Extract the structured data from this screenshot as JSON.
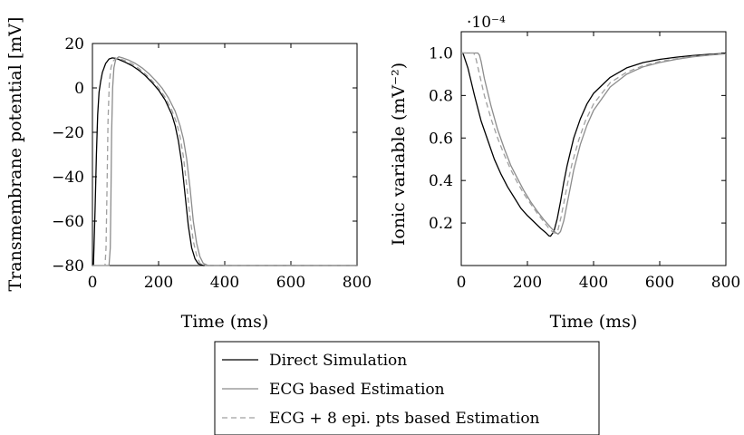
{
  "chart_data": [
    {
      "type": "line",
      "ylabel": "Transmembrane potential [mV]",
      "xlabel": "Time (ms)",
      "xlim": [
        0,
        800
      ],
      "ylim": [
        -80,
        20
      ],
      "xticks": [
        0,
        200,
        400,
        600,
        800
      ],
      "yticks": [
        -80,
        -60,
        -40,
        -20,
        0,
        20
      ],
      "xtick_labels": [
        "0",
        "200",
        "400",
        "600",
        "800"
      ],
      "ytick_labels": [
        "−80",
        "−60",
        "−40",
        "−20",
        "0",
        "20"
      ],
      "grid": false,
      "series": [
        {
          "name": "Direct Simulation",
          "color": "#000000",
          "style": "solid",
          "points": [
            [
              0,
              -80
            ],
            [
              3,
              -80
            ],
            [
              8,
              -55
            ],
            [
              12,
              -30
            ],
            [
              16,
              -12
            ],
            [
              20,
              -2
            ],
            [
              25,
              3
            ],
            [
              30,
              7
            ],
            [
              40,
              11
            ],
            [
              50,
              13
            ],
            [
              60,
              13.5
            ],
            [
              70,
              13.3
            ],
            [
              80,
              12.8
            ],
            [
              100,
              11.5
            ],
            [
              120,
              10
            ],
            [
              140,
              8
            ],
            [
              160,
              5.5
            ],
            [
              180,
              2.5
            ],
            [
              200,
              -1
            ],
            [
              220,
              -5.5
            ],
            [
              240,
              -12
            ],
            [
              250,
              -17
            ],
            [
              260,
              -24
            ],
            [
              270,
              -34
            ],
            [
              280,
              -48
            ],
            [
              290,
              -62
            ],
            [
              300,
              -72
            ],
            [
              310,
              -77
            ],
            [
              320,
              -79.2
            ],
            [
              335,
              -80
            ],
            [
              800,
              -80
            ]
          ]
        },
        {
          "name": "ECG based Estimation",
          "color": "#8c8c8c",
          "style": "solid",
          "points": [
            [
              0,
              -80
            ],
            [
              50,
              -80
            ],
            [
              54,
              -72
            ],
            [
              56,
              -50
            ],
            [
              58,
              -20
            ],
            [
              61,
              0
            ],
            [
              65,
              9
            ],
            [
              70,
              12.5
            ],
            [
              75,
              13.5
            ],
            [
              80,
              14
            ],
            [
              90,
              13.6
            ],
            [
              110,
              12.5
            ],
            [
              130,
              11
            ],
            [
              150,
              9
            ],
            [
              170,
              6.5
            ],
            [
              190,
              3.5
            ],
            [
              210,
              0
            ],
            [
              230,
              -4.5
            ],
            [
              250,
              -10.5
            ],
            [
              265,
              -17
            ],
            [
              275,
              -23
            ],
            [
              285,
              -32
            ],
            [
              295,
              -45
            ],
            [
              305,
              -60
            ],
            [
              315,
              -70
            ],
            [
              325,
              -76
            ],
            [
              335,
              -79
            ],
            [
              350,
              -80
            ],
            [
              800,
              -80
            ]
          ]
        },
        {
          "name": "ECG + 8 epi. pts based Estimation",
          "color": "#a0a0a0",
          "style": "dashed",
          "points": [
            [
              0,
              -80
            ],
            [
              38,
              -80
            ],
            [
              41,
              -72
            ],
            [
              44,
              -45
            ],
            [
              47,
              -15
            ],
            [
              51,
              2
            ],
            [
              56,
              9
            ],
            [
              62,
              12
            ],
            [
              70,
              13.2
            ],
            [
              80,
              13.3
            ],
            [
              100,
              12.2
            ],
            [
              120,
              10.8
            ],
            [
              140,
              8.8
            ],
            [
              160,
              6.3
            ],
            [
              180,
              3.3
            ],
            [
              200,
              0
            ],
            [
              220,
              -4.3
            ],
            [
              240,
              -10
            ],
            [
              255,
              -16
            ],
            [
              265,
              -22
            ],
            [
              275,
              -31
            ],
            [
              285,
              -44
            ],
            [
              295,
              -58
            ],
            [
              305,
              -69
            ],
            [
              315,
              -75.5
            ],
            [
              325,
              -79
            ],
            [
              340,
              -80
            ],
            [
              800,
              -80
            ]
          ]
        }
      ]
    },
    {
      "type": "line",
      "ylabel": "Ionic variable (mV⁻²)",
      "xlabel": "Time (ms)",
      "xlim": [
        0,
        800
      ],
      "ylim": [
        0,
        1.1
      ],
      "xticks": [
        0,
        200,
        400,
        600,
        800
      ],
      "yticks": [
        0.2,
        0.4,
        0.6,
        0.8,
        1.0
      ],
      "xtick_labels": [
        "0",
        "200",
        "400",
        "600",
        "800"
      ],
      "ytick_labels": [
        "0.2",
        "0.4",
        "0.6",
        "0.8",
        "1.0"
      ],
      "scale_label": "·10⁻⁴",
      "grid": false,
      "series": [
        {
          "name": "Direct Simulation",
          "color": "#000000",
          "style": "solid",
          "points": [
            [
              0,
              1.0
            ],
            [
              5,
              1.0
            ],
            [
              20,
              0.93
            ],
            [
              40,
              0.8
            ],
            [
              60,
              0.68
            ],
            [
              80,
              0.59
            ],
            [
              100,
              0.5
            ],
            [
              120,
              0.43
            ],
            [
              140,
              0.37
            ],
            [
              160,
              0.32
            ],
            [
              180,
              0.27
            ],
            [
              200,
              0.235
            ],
            [
              220,
              0.205
            ],
            [
              240,
              0.175
            ],
            [
              255,
              0.155
            ],
            [
              265,
              0.14
            ],
            [
              270,
              0.138
            ],
            [
              280,
              0.16
            ],
            [
              290,
              0.22
            ],
            [
              300,
              0.3
            ],
            [
              310,
              0.39
            ],
            [
              320,
              0.47
            ],
            [
              340,
              0.6
            ],
            [
              360,
              0.69
            ],
            [
              380,
              0.76
            ],
            [
              400,
              0.81
            ],
            [
              450,
              0.885
            ],
            [
              500,
              0.93
            ],
            [
              550,
              0.955
            ],
            [
              600,
              0.97
            ],
            [
              650,
              0.98
            ],
            [
              700,
              0.988
            ],
            [
              750,
              0.994
            ],
            [
              800,
              0.998
            ]
          ]
        },
        {
          "name": "ECG based Estimation",
          "color": "#8c8c8c",
          "style": "solid",
          "points": [
            [
              0,
              1.0
            ],
            [
              50,
              1.0
            ],
            [
              55,
              0.99
            ],
            [
              60,
              0.96
            ],
            [
              70,
              0.88
            ],
            [
              90,
              0.75
            ],
            [
              110,
              0.64
            ],
            [
              130,
              0.55
            ],
            [
              150,
              0.47
            ],
            [
              170,
              0.41
            ],
            [
              190,
              0.35
            ],
            [
              210,
              0.3
            ],
            [
              230,
              0.255
            ],
            [
              250,
              0.215
            ],
            [
              270,
              0.18
            ],
            [
              285,
              0.155
            ],
            [
              293,
              0.148
            ],
            [
              300,
              0.16
            ],
            [
              310,
              0.21
            ],
            [
              320,
              0.29
            ],
            [
              330,
              0.37
            ],
            [
              340,
              0.45
            ],
            [
              360,
              0.57
            ],
            [
              380,
              0.66
            ],
            [
              400,
              0.73
            ],
            [
              450,
              0.84
            ],
            [
              500,
              0.9
            ],
            [
              550,
              0.935
            ],
            [
              600,
              0.955
            ],
            [
              650,
              0.97
            ],
            [
              700,
              0.982
            ],
            [
              750,
              0.99
            ],
            [
              800,
              0.996
            ]
          ]
        },
        {
          "name": "ECG + 8 epi. pts based Estimation",
          "color": "#a0a0a0",
          "style": "dashed",
          "points": [
            [
              0,
              1.0
            ],
            [
              38,
              1.0
            ],
            [
              45,
              0.97
            ],
            [
              55,
              0.9
            ],
            [
              70,
              0.8
            ],
            [
              90,
              0.69
            ],
            [
              110,
              0.6
            ],
            [
              130,
              0.52
            ],
            [
              150,
              0.45
            ],
            [
              170,
              0.39
            ],
            [
              190,
              0.335
            ],
            [
              210,
              0.29
            ],
            [
              230,
              0.245
            ],
            [
              250,
              0.205
            ],
            [
              265,
              0.175
            ],
            [
              278,
              0.155
            ],
            [
              285,
              0.152
            ],
            [
              292,
              0.165
            ],
            [
              302,
              0.23
            ],
            [
              312,
              0.31
            ],
            [
              322,
              0.39
            ],
            [
              335,
              0.48
            ],
            [
              355,
              0.59
            ],
            [
              375,
              0.68
            ],
            [
              400,
              0.76
            ],
            [
              450,
              0.86
            ],
            [
              500,
              0.91
            ],
            [
              550,
              0.94
            ],
            [
              600,
              0.96
            ],
            [
              650,
              0.973
            ],
            [
              700,
              0.984
            ],
            [
              750,
              0.991
            ],
            [
              800,
              0.997
            ]
          ]
        }
      ]
    }
  ],
  "legend": {
    "placement": "bottom-center",
    "entries": [
      {
        "label": "Direct Simulation",
        "color": "#000000",
        "style": "solid"
      },
      {
        "label": "ECG based Estimation",
        "color": "#8c8c8c",
        "style": "solid"
      },
      {
        "label": "ECG + 8 epi. pts based Estimation",
        "color": "#a0a0a0",
        "style": "dashed"
      }
    ]
  }
}
